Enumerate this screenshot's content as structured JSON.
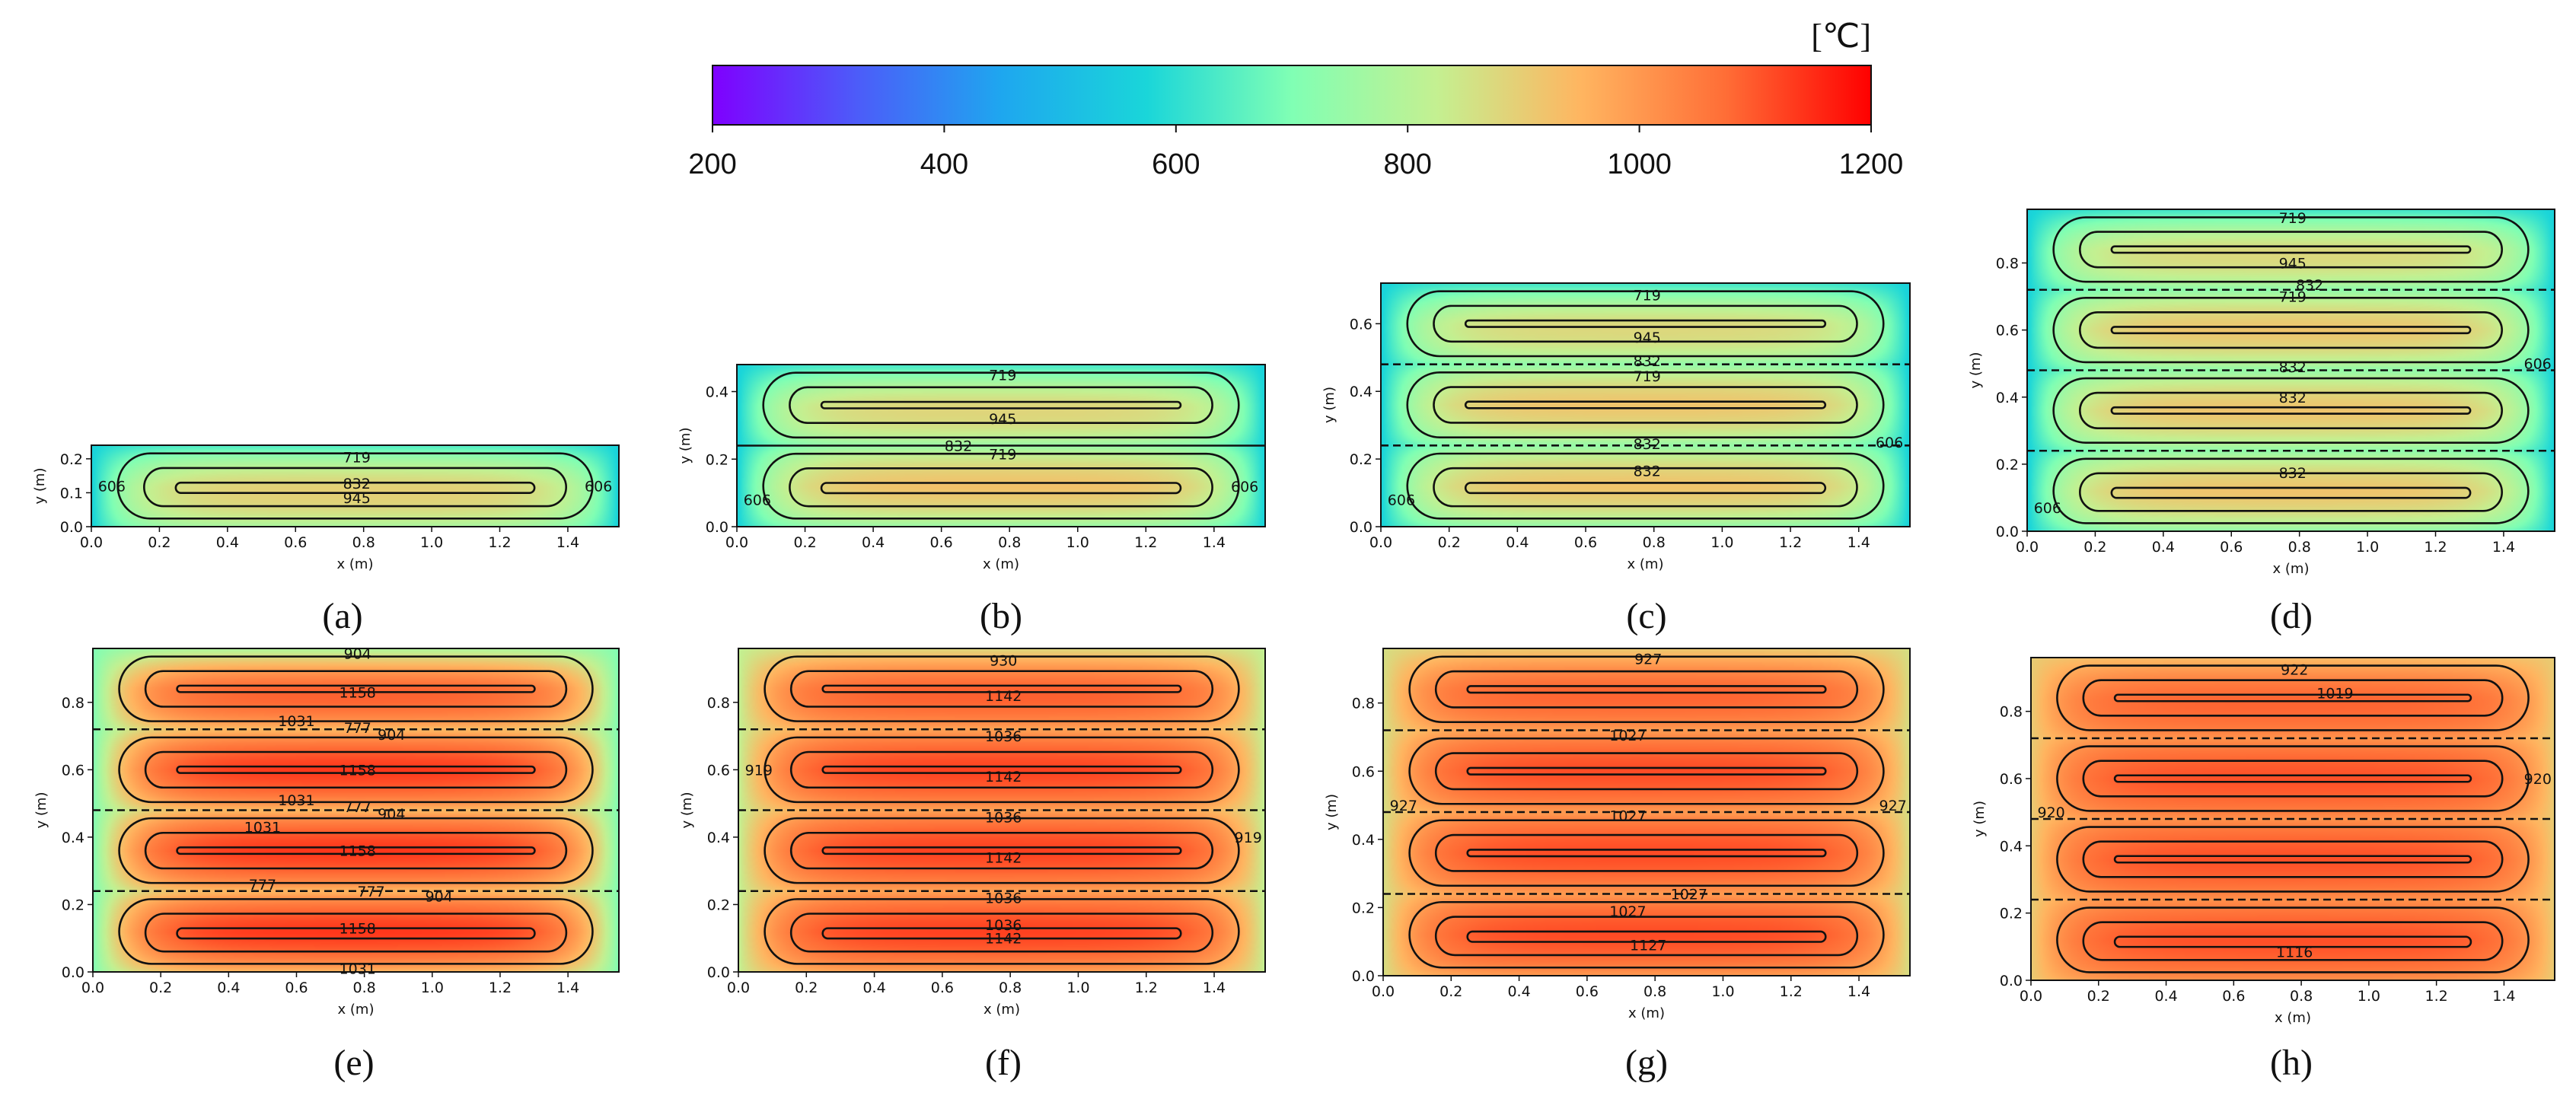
{
  "chart_data": {
    "type": "heatmap",
    "colorbar": {
      "unit": "[℃]",
      "min": 200,
      "max": 1200,
      "ticks": [
        "200",
        "400",
        "600",
        "800",
        "1000",
        "1200"
      ]
    },
    "panels": [
      {
        "label": "(a)",
        "xlabel": "x (m)",
        "ylabel": "y (m)",
        "xlim": [
          0,
          1.55
        ],
        "ylim": [
          0,
          0.24
        ],
        "xticks": [
          "0.0",
          "0.2",
          "0.4",
          "0.6",
          "0.8",
          "1.0",
          "1.2",
          "1.4"
        ],
        "yticks": [
          "0.0",
          "0.1",
          "0.2"
        ],
        "layers": 1,
        "t_peak": 960,
        "t_bulk": 960,
        "t_edge": 560,
        "contour_labels": [
          "719",
          "832",
          "945",
          "606",
          "606"
        ]
      },
      {
        "label": "(b)",
        "xlabel": "x (m)",
        "ylabel": "y (m)",
        "xlim": [
          0,
          1.55
        ],
        "ylim": [
          0,
          0.48
        ],
        "xticks": [
          "0.0",
          "0.2",
          "0.4",
          "0.6",
          "0.8",
          "1.0",
          "1.2",
          "1.4"
        ],
        "yticks": [
          "0.0",
          "0.2",
          "0.4"
        ],
        "layers": 2,
        "t_peak": 955,
        "t_bulk": 900,
        "t_edge": 560,
        "contour_labels": [
          "719",
          "945",
          "832",
          "719",
          "606",
          "606"
        ]
      },
      {
        "label": "(c)",
        "xlabel": "x (m)",
        "ylabel": "y (m)",
        "xlim": [
          0,
          1.55
        ],
        "ylim": [
          0,
          0.72
        ],
        "xticks": [
          "0.0",
          "0.2",
          "0.4",
          "0.6",
          "0.8",
          "1.0",
          "1.2",
          "1.4"
        ],
        "yticks": [
          "0.0",
          "0.2",
          "0.4",
          "0.6"
        ],
        "layers": 3,
        "t_peak": 950,
        "t_bulk": 880,
        "t_edge": 560,
        "contour_labels": [
          "719",
          "945",
          "832",
          "719",
          "832",
          "832",
          "606",
          "606"
        ]
      },
      {
        "label": "(d)",
        "xlabel": "x (m)",
        "ylabel": "y (m)",
        "xlim": [
          0,
          1.55
        ],
        "ylim": [
          0,
          0.96
        ],
        "xticks": [
          "0.0",
          "0.2",
          "0.4",
          "0.6",
          "0.8",
          "1.0",
          "1.2",
          "1.4"
        ],
        "yticks": [
          "0.0",
          "0.2",
          "0.4",
          "0.6",
          "0.8"
        ],
        "layers": 4,
        "t_peak": 950,
        "t_bulk": 870,
        "t_edge": 560,
        "contour_labels": [
          "719",
          "945",
          "832",
          "719",
          "832",
          "832",
          "832",
          "606",
          "606"
        ]
      },
      {
        "label": "(e)",
        "xlabel": "x (m)",
        "ylabel": "y (m)",
        "xlim": [
          0,
          1.55
        ],
        "ylim": [
          0,
          0.96
        ],
        "xticks": [
          "0.0",
          "0.2",
          "0.4",
          "0.6",
          "0.8",
          "1.0",
          "1.2",
          "1.4"
        ],
        "yticks": [
          "0.0",
          "0.2",
          "0.4",
          "0.6",
          "0.8"
        ],
        "layers": 4,
        "t_peak": 1170,
        "t_bulk": 1140,
        "t_edge": 700,
        "contour_labels": [
          "904",
          "1158",
          "1031",
          "777",
          "904",
          "1158",
          "1031",
          "777",
          "904",
          "1031",
          "1158",
          "777",
          "777",
          "904",
          "1158",
          "1031"
        ]
      },
      {
        "label": "(f)",
        "xlabel": "x (m)",
        "ylabel": "y (m)",
        "xlim": [
          0,
          1.55
        ],
        "ylim": [
          0,
          0.96
        ],
        "xticks": [
          "0.0",
          "0.2",
          "0.4",
          "0.6",
          "0.8",
          "1.0",
          "1.2",
          "1.4"
        ],
        "yticks": [
          "0.0",
          "0.2",
          "0.4",
          "0.6",
          "0.8"
        ],
        "layers": 4,
        "t_peak": 1150,
        "t_bulk": 1110,
        "t_edge": 820,
        "contour_labels": [
          "930",
          "1142",
          "1036",
          "1142",
          "1036",
          "1142",
          "1036",
          "1036",
          "1142",
          "919",
          "919"
        ]
      },
      {
        "label": "(g)",
        "xlabel": "x (m)",
        "ylabel": "y (m)",
        "xlim": [
          0,
          1.55
        ],
        "ylim": [
          0,
          0.96
        ],
        "xticks": [
          "0.0",
          "0.2",
          "0.4",
          "0.6",
          "0.8",
          "1.0",
          "1.2",
          "1.4"
        ],
        "yticks": [
          "0.0",
          "0.2",
          "0.4",
          "0.6",
          "0.8"
        ],
        "layers": 4,
        "t_peak": 1135,
        "t_bulk": 1100,
        "t_edge": 860,
        "contour_labels": [
          "927",
          "1027",
          "1027",
          "1027",
          "1027",
          "1127",
          "927",
          "927"
        ]
      },
      {
        "label": "(h)",
        "xlabel": "x (m)",
        "ylabel": "y (m)",
        "xlim": [
          0,
          1.55
        ],
        "ylim": [
          0,
          0.96
        ],
        "xticks": [
          "0.0",
          "0.2",
          "0.4",
          "0.6",
          "0.8",
          "1.0",
          "1.2",
          "1.4"
        ],
        "yticks": [
          "0.0",
          "0.2",
          "0.4",
          "0.6",
          "0.8"
        ],
        "layers": 4,
        "t_peak": 1125,
        "t_bulk": 1100,
        "t_edge": 900,
        "contour_labels": [
          "922",
          "1019",
          "1116",
          "920",
          "920"
        ]
      }
    ]
  }
}
